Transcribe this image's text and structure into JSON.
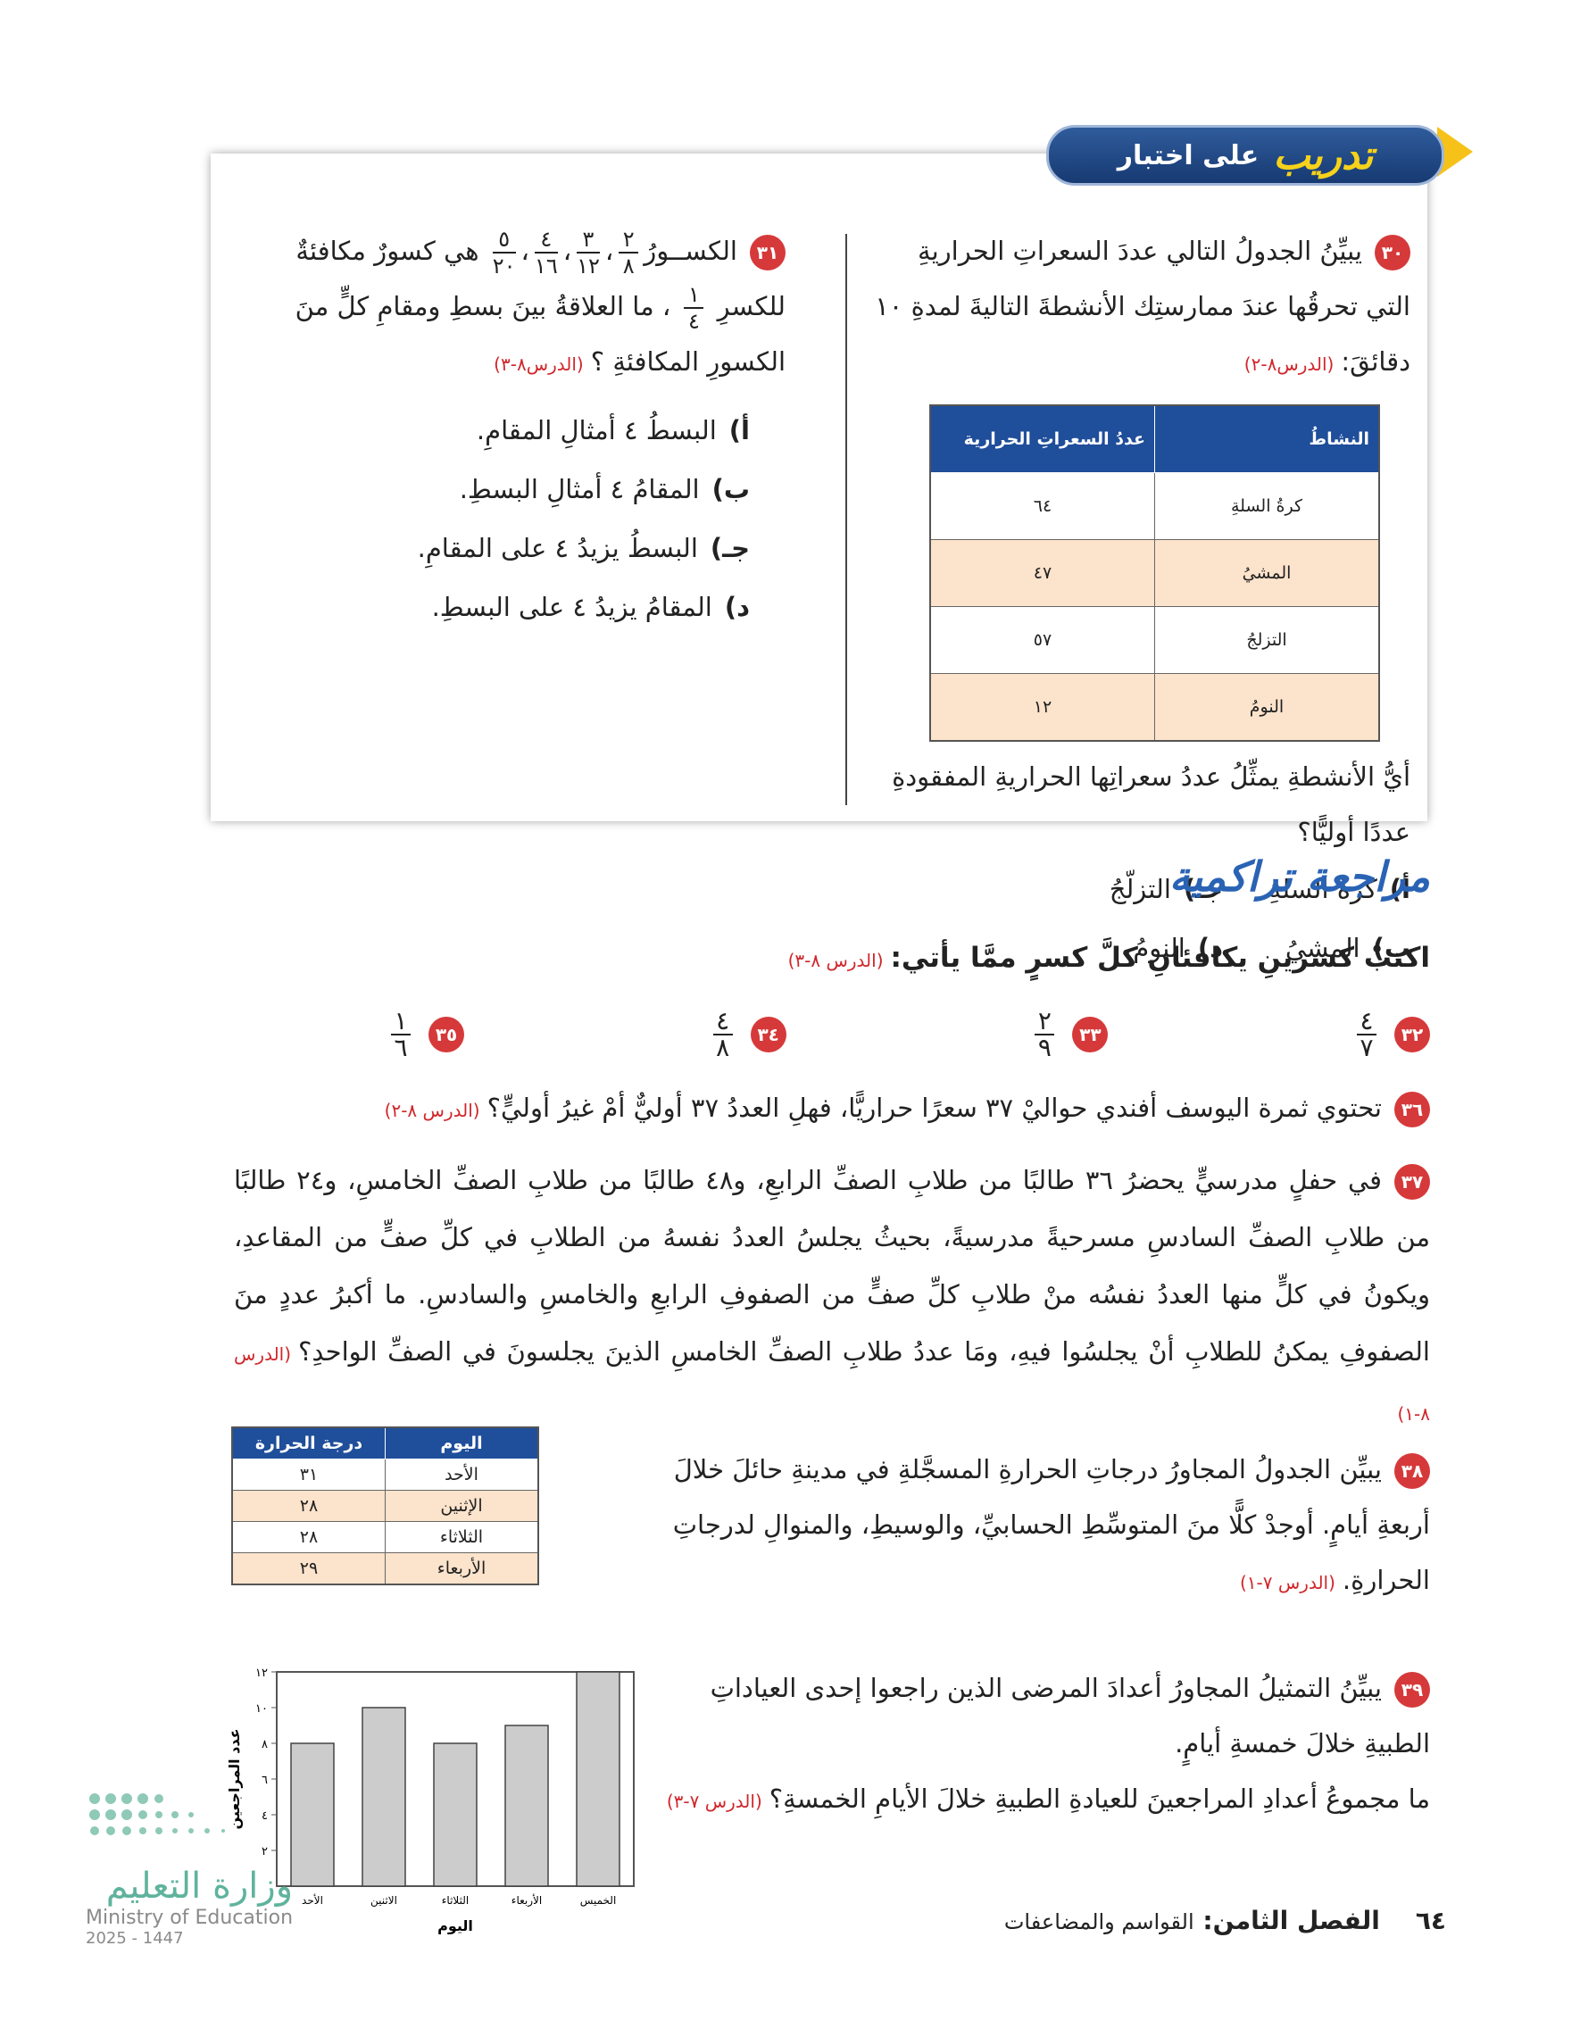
{
  "banner": {
    "title": "تدريب",
    "subtitle": "على اختبار"
  },
  "q30": {
    "number": "٣٠",
    "text": "يبيِّنُ الجدولُ التالي عددَ السعراتِ الحراريةِ التي تحرقُها عندَ ممارستِك الأنشطةَ التاليةَ لمدةِ ١٠ دقائقَ:",
    "lesson": "(الدرس٨-٢)",
    "table": {
      "headers": [
        "النشاطُ",
        "عددُ السعراتِ الحرارية"
      ],
      "rows": [
        [
          "كرةُ السلةِ",
          "٦٤"
        ],
        [
          "المشيُ",
          "٤٧"
        ],
        [
          "التزلجُ",
          "٥٧"
        ],
        [
          "النومُ",
          "١٢"
        ]
      ]
    },
    "question": "أيُّ الأنشطةِ يمثِّلُ عددُ سعراتِها الحراريةِ المفقودةِ عددًا أوليًّا؟",
    "options": [
      [
        "أ)",
        "كرةُ السلةِ"
      ],
      [
        "جـ)",
        "التزلّجُ"
      ],
      [
        "ب)",
        "المشيُ"
      ],
      [
        "د)",
        "النومُ"
      ]
    ]
  },
  "q31": {
    "number": "٣١",
    "intro": "الكســورُ",
    "fractions": [
      [
        "٢",
        "٨"
      ],
      [
        "٣",
        "١٢"
      ],
      [
        "٤",
        "١٦"
      ],
      [
        "٥",
        "٢٠"
      ]
    ],
    "separator": "،",
    "text1": "هي كسورٌ مكافئةٌ للكسرِ",
    "fraction": [
      "١",
      "٤"
    ],
    "text2": "، ما العلاقةُ بينَ بسطِ ومقامِ كلٍّ منَ الكسورِ المكافئةِ ؟",
    "lesson": "(الدرس٨-٣)",
    "options": [
      [
        "أ)",
        "البسطُ ٤ أمثالِ المقامِ."
      ],
      [
        "ب)",
        "المقامُ ٤ أمثالِ البسطِ."
      ],
      [
        "جـ)",
        "البسطُ يزيدُ ٤ على المقامِ."
      ],
      [
        "د)",
        "المقامُ يزيدُ ٤ على البسطِ."
      ]
    ]
  },
  "review": {
    "title": "مراجعة تراكمية",
    "instruction": "اكتبْ كسرينِ يكافئانِ كلَّ كسرٍ ممَّا يأتي:",
    "lesson": "(الدرس ٨-٣)",
    "items": [
      {
        "number": "٣٢",
        "numerator": "٤",
        "denominator": "٧"
      },
      {
        "number": "٣٣",
        "numerator": "٢",
        "denominator": "٩"
      },
      {
        "number": "٣٤",
        "numerator": "٤",
        "denominator": "٨"
      },
      {
        "number": "٣٥",
        "numerator": "١",
        "denominator": "٦"
      }
    ]
  },
  "q36": {
    "number": "٣٦",
    "text": "تحتوي ثمرة اليوسف أفندي حواليْ ٣٧ سعرًا حراريًّا، فهلِ العددُ ٣٧ أوليٌّ أمْ غيرُ أوليٍّ؟",
    "lesson": "(الدرس ٨-٢)"
  },
  "q37": {
    "number": "٣٧",
    "text": "في حفلٍ مدرسيٍّ يحضرُ ٣٦ طالبًا من طلابِ الصفِّ الرابعِ، و٤٨ طالبًا من طلابِ الصفِّ الخامسِ، و٢٤ طالبًا من طلابِ الصفِّ السادسِ مسرحيةً مدرسيةً، بحيثُ يجلسُ العددُ نفسهُ من الطلابِ في كلِّ صفٍّ من المقاعدِ، ويكونُ في كلٍّ منها العددُ نفسُه منْ طلابِ كلِّ صفٍّ من الصفوفِ الرابعِ والخامسِ والسادسِ. ما أكبرُ عددٍ منَ الصفوفِ يمكنُ للطلابِ أنْ يجلسُوا فيهِ، ومَا عددُ طلابِ الصفِّ الخامسِ الذينَ يجلسونَ في الصفِّ الواحدِ؟",
    "lesson": "(الدرس ٨-١)"
  },
  "q38": {
    "number": "٣٨",
    "text": "يبيِّن الجدولُ المجاورُ درجاتِ الحرارةِ المسجَّلةِ في مدينةِ حائلَ خلالَ أربعةِ أيامٍ. أوجدْ كلًّا منَ المتوسِّطِ الحسابيِّ، والوسيطِ، والمنوالِ لدرجاتِ الحرارةِ.",
    "lesson": "(الدرس ٧-١)",
    "table": {
      "headers": [
        "اليوم",
        "درجة الحرارة"
      ],
      "rows": [
        [
          "الأحد",
          "٣١"
        ],
        [
          "الإثنين",
          "٢٨"
        ],
        [
          "الثلاثاء",
          "٢٨"
        ],
        [
          "الأربعاء",
          "٢٩"
        ]
      ]
    }
  },
  "q39": {
    "number": "٣٩",
    "text": "يبيِّنُ التمثيلُ المجاورُ أعدادَ المرضى الذين راجعوا إحدى العياداتِ الطبيةِ خلالَ خمسةِ أيامٍ.",
    "question": "ما مجموعُ أعدادِ المراجعينَ للعيادةِ الطبيةِ خلالَ الأيامِ الخمسةِ؟",
    "lesson": "(الدرس ٧-٣)",
    "chart": {
      "type": "bar",
      "categories": [
        "الأحد",
        "الاثنين",
        "الثلاثاء",
        "الأربعاء",
        "الخميس"
      ],
      "values": [
        8,
        10,
        8,
        9,
        12
      ],
      "color": "#cccccc",
      "ylim": [
        0,
        12
      ],
      "yticks": [
        {
          "value": 2,
          "label": "٢"
        },
        {
          "value": 4,
          "label": "٤"
        },
        {
          "value": 6,
          "label": "٦"
        },
        {
          "value": 8,
          "label": "٨"
        },
        {
          "value": 10,
          "label": "١٠"
        },
        {
          "value": 12,
          "label": "١٢"
        }
      ],
      "y_label": "عدد المراجعين",
      "x_label": "اليوم"
    }
  },
  "footer": {
    "page": "٦٤",
    "chapter": "الفصل الثامن:",
    "chapter_title": "القواسم والمضاعفات"
  },
  "logo": {
    "arabic": "وزارة التعليم",
    "english": "Ministry of Education",
    "year": "2025 - 1447"
  }
}
